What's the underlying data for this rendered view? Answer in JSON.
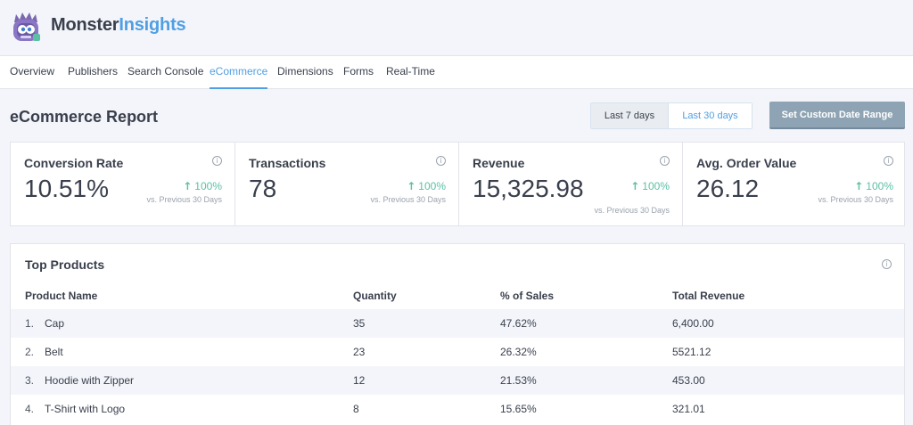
{
  "brand": {
    "part1": "Monster",
    "part2": "Insights",
    "logo_icon": "monster-logo-icon"
  },
  "nav": {
    "items": [
      "Overview",
      "Publishers",
      "Search Console",
      "eCommerce",
      "Dimensions",
      "Forms",
      "Real-Time"
    ],
    "active": "eCommerce"
  },
  "report": {
    "title": "eCommerce Report",
    "range_7": "Last 7 days",
    "range_30": "Last 30 days",
    "selected_range": "Last 30 days",
    "custom_range": "Set Custom Date Range"
  },
  "kpis": [
    {
      "title": "Conversion Rate",
      "value": "10.51%",
      "change": "100%",
      "compare": "vs. Previous 30 Days"
    },
    {
      "title": "Transactions",
      "value": "78",
      "change": "100%",
      "compare": "vs. Previous 30 Days"
    },
    {
      "title": "Revenue",
      "value": "15,325.98",
      "change": "100%",
      "compare": "vs. Previous 30 Days"
    },
    {
      "title": "Avg. Order Value",
      "value": "26.12",
      "change": "100%",
      "compare": "vs. Previous 30 Days"
    }
  ],
  "top_products": {
    "title": "Top Products",
    "headers": {
      "name": "Product Name",
      "quantity": "Quantity",
      "pct": "% of Sales",
      "revenue": "Total Revenue"
    },
    "rows": [
      {
        "num": "1.",
        "name": "Cap",
        "quantity": "35",
        "pct": "47.62%",
        "revenue": "6,400.00"
      },
      {
        "num": "2.",
        "name": "Belt",
        "quantity": "23",
        "pct": "26.32%",
        "revenue": "5521.12"
      },
      {
        "num": "3.",
        "name": "Hoodie with Zipper",
        "quantity": "12",
        "pct": "21.53%",
        "revenue": "453.00"
      },
      {
        "num": "4.",
        "name": "T-Shirt with Logo",
        "quantity": "8",
        "pct": "15.65%",
        "revenue": "321.01"
      }
    ]
  },
  "colors": {
    "accent": "#509fe2",
    "positive": "#5cc0a5",
    "button": "#8ea4b4",
    "text": "#393f4c"
  }
}
